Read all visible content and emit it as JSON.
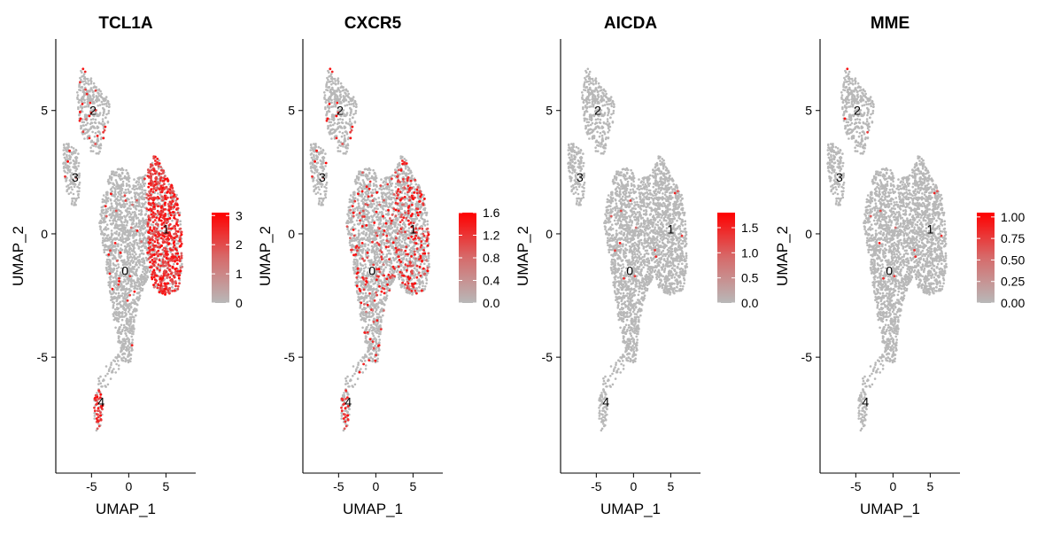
{
  "chart_data": [
    {
      "type": "scatter",
      "title": "TCL1A",
      "xlabel": "UMAP_1",
      "ylabel": "UMAP_2",
      "xlim": [
        -9.8,
        9.0
      ],
      "ylim": [
        -9.7,
        7.9
      ],
      "x_ticks": [
        -5,
        0,
        5
      ],
      "x_tick_labels": [
        "-5",
        "0",
        "5"
      ],
      "y_ticks": [
        -5,
        0,
        5
      ],
      "y_tick_labels": [
        "-5",
        "0",
        "5"
      ],
      "grid": false,
      "cluster_labels": [
        {
          "text": "0",
          "x": -0.5,
          "y": -1.5
        },
        {
          "text": "1",
          "x": 5.0,
          "y": 0.2
        },
        {
          "text": "2",
          "x": -4.8,
          "y": 5.0
        },
        {
          "text": "3",
          "x": -7.2,
          "y": 2.3
        },
        {
          "text": "4",
          "x": -3.7,
          "y": -6.8
        }
      ],
      "colorbar": {
        "min": 0,
        "max": 3.1,
        "ticks": [
          0,
          1,
          2,
          3
        ],
        "tick_labels": [
          "0",
          "1",
          "2",
          "3"
        ],
        "low_color": "#b8b8b8",
        "high_color": "#ff0000"
      },
      "expression": {
        "c0": 0.02,
        "c1": 0.72,
        "c2": 0.08,
        "c3": 0.03,
        "c4": 0.55,
        "max_value": 3.1
      },
      "legend_position": "right"
    },
    {
      "type": "scatter",
      "title": "CXCR5",
      "xlabel": "UMAP_1",
      "ylabel": "UMAP_2",
      "xlim": [
        -9.8,
        9.0
      ],
      "ylim": [
        -9.7,
        7.9
      ],
      "x_ticks": [
        -5,
        0,
        5
      ],
      "x_tick_labels": [
        "-5",
        "0",
        "5"
      ],
      "y_ticks": [
        -5,
        0,
        5
      ],
      "y_tick_labels": [
        "-5",
        "0",
        "5"
      ],
      "grid": false,
      "cluster_labels": [
        {
          "text": "0",
          "x": -0.5,
          "y": -1.5
        },
        {
          "text": "1",
          "x": 5.0,
          "y": 0.2
        },
        {
          "text": "2",
          "x": -4.8,
          "y": 5.0
        },
        {
          "text": "3",
          "x": -7.2,
          "y": 2.3
        },
        {
          "text": "4",
          "x": -3.7,
          "y": -6.8
        }
      ],
      "colorbar": {
        "min": 0,
        "max": 1.6,
        "ticks": [
          0,
          0.4,
          0.8,
          1.2,
          1.6
        ],
        "tick_labels": [
          "0.0",
          "0.4",
          "0.8",
          "1.2",
          "1.6"
        ],
        "low_color": "#b8b8b8",
        "high_color": "#ff0000"
      },
      "expression": {
        "c0": 0.09,
        "c1": 0.22,
        "c2": 0.05,
        "c3": 0.04,
        "c4": 0.35,
        "max_value": 1.6
      },
      "legend_position": "right"
    },
    {
      "type": "scatter",
      "title": "AICDA",
      "xlabel": "UMAP_1",
      "ylabel": "UMAP_2",
      "xlim": [
        -9.8,
        9.0
      ],
      "ylim": [
        -9.7,
        7.9
      ],
      "x_ticks": [
        -5,
        0,
        5
      ],
      "x_tick_labels": [
        "-5",
        "0",
        "5"
      ],
      "y_ticks": [
        -5,
        0,
        5
      ],
      "y_tick_labels": [
        "-5",
        "0",
        "5"
      ],
      "grid": false,
      "cluster_labels": [
        {
          "text": "0",
          "x": -0.5,
          "y": -1.5
        },
        {
          "text": "1",
          "x": 5.0,
          "y": 0.2
        },
        {
          "text": "2",
          "x": -4.8,
          "y": 5.0
        },
        {
          "text": "3",
          "x": -7.2,
          "y": 2.3
        },
        {
          "text": "4",
          "x": -3.7,
          "y": -6.8
        }
      ],
      "colorbar": {
        "min": 0,
        "max": 1.8,
        "ticks": [
          0,
          0.5,
          1.0,
          1.5
        ],
        "tick_labels": [
          "0.0",
          "0.5",
          "1.0",
          "1.5"
        ],
        "low_color": "#b8b8b8",
        "high_color": "#ff0000"
      },
      "expression": {
        "c0": 0.008,
        "c1": 0.006,
        "c2": 0.006,
        "c3": 0.004,
        "c4": 0.02,
        "max_value": 1.8
      },
      "legend_position": "right"
    },
    {
      "type": "scatter",
      "title": "MME",
      "xlabel": "UMAP_1",
      "ylabel": "UMAP_2",
      "xlim": [
        -9.8,
        9.0
      ],
      "ylim": [
        -9.7,
        7.9
      ],
      "x_ticks": [
        -5,
        0,
        5
      ],
      "x_tick_labels": [
        "-5",
        "0",
        "5"
      ],
      "y_ticks": [
        -5,
        0,
        5
      ],
      "y_tick_labels": [
        "-5",
        "0",
        "5"
      ],
      "grid": false,
      "cluster_labels": [
        {
          "text": "0",
          "x": -0.5,
          "y": -1.5
        },
        {
          "text": "1",
          "x": 5.0,
          "y": 0.2
        },
        {
          "text": "2",
          "x": -4.8,
          "y": 5.0
        },
        {
          "text": "3",
          "x": -7.2,
          "y": 2.3
        },
        {
          "text": "4",
          "x": -3.7,
          "y": -6.8
        }
      ],
      "colorbar": {
        "min": 0,
        "max": 1.05,
        "ticks": [
          0,
          0.25,
          0.5,
          0.75,
          1.0
        ],
        "tick_labels": [
          "0.00",
          "0.25",
          "0.50",
          "0.75",
          "1.00"
        ],
        "low_color": "#b8b8b8",
        "high_color": "#ff0000"
      },
      "expression": {
        "c0": 0.004,
        "c1": 0.006,
        "c2": 0.01,
        "c3": 0.015,
        "c4": 0.02,
        "max_value": 1.05
      },
      "legend_position": "right"
    }
  ]
}
